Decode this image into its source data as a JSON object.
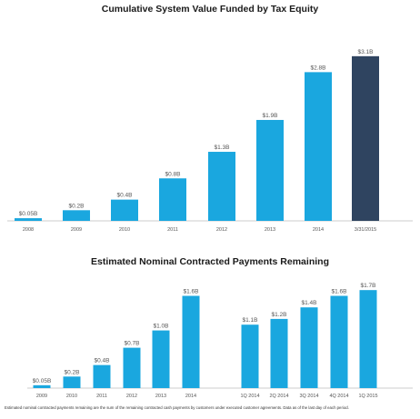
{
  "colors": {
    "bar": "#1aa7df",
    "highlight": "#2f4460",
    "axis": "#999999",
    "text": "#555555"
  },
  "footnote": "Estimated nominal contracted payments remaining are the sum of the remaining contracted cash payments by customers under executed customer agreements. Data as of the last day of each period.",
  "chart_data": [
    {
      "type": "bar",
      "title": "Cumulative System Value Funded by Tax Equity",
      "xlabel": "",
      "ylabel": "",
      "ylim": [
        0,
        3.2
      ],
      "grid": false,
      "categories": [
        "2008",
        "2009",
        "2010",
        "2011",
        "2012",
        "2013",
        "2014",
        "3/31/2015"
      ],
      "values": [
        0.05,
        0.2,
        0.4,
        0.8,
        1.3,
        1.9,
        2.8,
        3.1
      ],
      "data_labels": [
        "$0.05B",
        "$0.2B",
        "$0.4B",
        "$0.8B",
        "$1.3B",
        "$1.9B",
        "$2.8B",
        "$3.1B"
      ],
      "highlight_index": 7
    },
    {
      "type": "bar",
      "title": "Estimated Nominal Contracted Payments Remaining",
      "xlabel": "",
      "ylabel": "",
      "ylim": [
        0,
        1.75
      ],
      "grid": false,
      "categories": [
        "2009",
        "2010",
        "2011",
        "2012",
        "2013",
        "2014",
        "1Q 2014",
        "2Q 2014",
        "3Q 2014",
        "4Q 2014",
        "1Q 2015"
      ],
      "values": [
        0.05,
        0.2,
        0.4,
        0.7,
        1.0,
        1.6,
        1.1,
        1.2,
        1.4,
        1.6,
        1.7
      ],
      "data_labels": [
        "$0.05B",
        "$0.2B",
        "$0.4B",
        "$0.7B",
        "$1.0B",
        "$1.6B",
        "$1.1B",
        "$1.2B",
        "$1.4B",
        "$1.6B",
        "$1.7B"
      ]
    }
  ]
}
